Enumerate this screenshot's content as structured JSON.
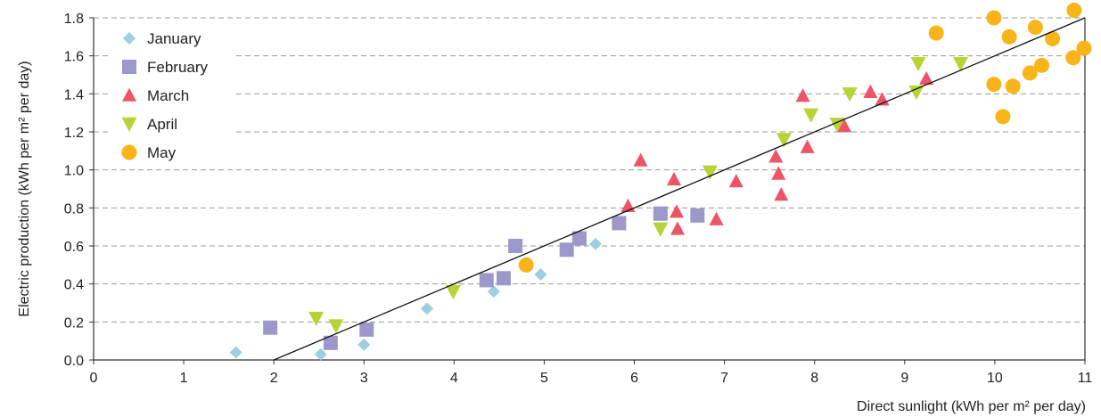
{
  "chart_data": {
    "type": "scatter",
    "xlabel": "Direct sunlight (kWh per m² per day)",
    "ylabel": "Electric production (kWh per m² per day)",
    "xlim": [
      0,
      11
    ],
    "ylim": [
      0,
      1.8
    ],
    "xticks": [
      0,
      1,
      2,
      3,
      4,
      5,
      6,
      7,
      8,
      9,
      10,
      11
    ],
    "yticks": [
      0.0,
      0.2,
      0.4,
      0.6,
      0.8,
      1.0,
      1.2,
      1.4,
      1.6,
      1.8
    ],
    "ytick_labels": [
      "0.0",
      "0.2",
      "0.4",
      "0.6",
      "0.8",
      "1.0",
      "1.2",
      "1.4",
      "1.6",
      "1.8"
    ],
    "grid": "horizontal dashed",
    "legend_position": "top-left",
    "trendline": {
      "x": [
        2.0,
        11.0
      ],
      "y": [
        0.0,
        1.8
      ],
      "color": "#111111"
    },
    "series": [
      {
        "name": "January",
        "marker": "diamond",
        "color": "#9dcfe0",
        "points": [
          [
            1.58,
            0.04
          ],
          [
            2.52,
            0.03
          ],
          [
            3.0,
            0.08
          ],
          [
            3.7,
            0.27
          ],
          [
            4.44,
            0.36
          ],
          [
            4.96,
            0.45
          ],
          [
            5.57,
            0.61
          ]
        ]
      },
      {
        "name": "February",
        "marker": "square",
        "color": "#9d98cb",
        "points": [
          [
            1.96,
            0.17
          ],
          [
            2.63,
            0.09
          ],
          [
            3.03,
            0.16
          ],
          [
            4.36,
            0.42
          ],
          [
            4.55,
            0.43
          ],
          [
            4.68,
            0.6
          ],
          [
            5.25,
            0.58
          ],
          [
            5.39,
            0.64
          ],
          [
            5.83,
            0.72
          ],
          [
            6.29,
            0.77
          ],
          [
            6.7,
            0.76
          ]
        ]
      },
      {
        "name": "March",
        "marker": "triangle-up",
        "color": "#ee5366",
        "points": [
          [
            5.93,
            0.81
          ],
          [
            6.07,
            1.05
          ],
          [
            6.44,
            0.95
          ],
          [
            6.47,
            0.78
          ],
          [
            6.48,
            0.69
          ],
          [
            6.91,
            0.74
          ],
          [
            7.13,
            0.94
          ],
          [
            7.57,
            1.07
          ],
          [
            7.6,
            0.98
          ],
          [
            7.63,
            0.87
          ],
          [
            7.87,
            1.39
          ],
          [
            7.92,
            1.12
          ],
          [
            8.33,
            1.23
          ],
          [
            8.62,
            1.41
          ],
          [
            8.75,
            1.37
          ],
          [
            9.24,
            1.48
          ]
        ]
      },
      {
        "name": "April",
        "marker": "triangle-down",
        "color": "#b6d433",
        "points": [
          [
            2.47,
            0.22
          ],
          [
            2.69,
            0.18
          ],
          [
            3.99,
            0.36
          ],
          [
            6.29,
            0.69
          ],
          [
            6.84,
            0.99
          ],
          [
            7.66,
            1.16
          ],
          [
            7.96,
            1.29
          ],
          [
            8.25,
            1.24
          ],
          [
            8.39,
            1.4
          ],
          [
            9.13,
            1.41
          ],
          [
            9.15,
            1.56
          ],
          [
            9.62,
            1.56
          ]
        ]
      },
      {
        "name": "May",
        "marker": "circle",
        "color": "#f8b418",
        "points": [
          [
            4.8,
            0.5
          ],
          [
            9.35,
            1.72
          ],
          [
            9.99,
            1.8
          ],
          [
            9.99,
            1.45
          ],
          [
            10.09,
            1.28
          ],
          [
            10.16,
            1.7
          ],
          [
            10.2,
            1.44
          ],
          [
            10.39,
            1.51
          ],
          [
            10.45,
            1.75
          ],
          [
            10.52,
            1.55
          ],
          [
            10.64,
            1.69
          ],
          [
            10.87,
            1.59
          ],
          [
            10.88,
            1.84
          ],
          [
            10.99,
            1.64
          ]
        ]
      }
    ]
  }
}
